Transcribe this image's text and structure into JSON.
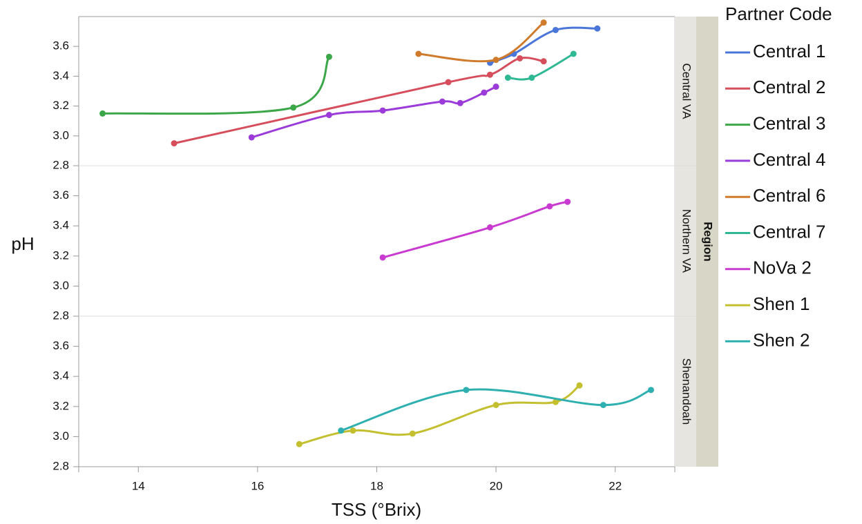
{
  "chart_data": {
    "type": "line",
    "x_label": "TSS (°Brix)",
    "y_label": "pH",
    "facet_label": "Region",
    "legend_title": "Partner Code",
    "xlim": [
      13,
      23
    ],
    "xticks": [
      14,
      16,
      18,
      20,
      22
    ],
    "ylim": [
      2.8,
      3.8
    ],
    "yticks": [
      2.8,
      {
        "value": 3,
        "label": "3.0"
      },
      3.2,
      3.4,
      3.6
    ],
    "panels": [
      {
        "name": "Central VA",
        "series": [
          {
            "name": "Central 1",
            "color": "#4a76d9",
            "x": [
              19.9,
              20.3,
              21.0,
              21.7
            ],
            "values": [
              3.49,
              3.55,
              3.71,
              3.72
            ]
          },
          {
            "name": "Central 2",
            "color": "#d64e5c",
            "x": [
              14.6,
              19.2,
              19.9,
              20.4,
              20.8
            ],
            "values": [
              2.95,
              3.36,
              3.41,
              3.52,
              3.5
            ]
          },
          {
            "name": "Central 3",
            "color": "#3ca748",
            "x": [
              13.4,
              16.6,
              17.2
            ],
            "values": [
              3.15,
              3.19,
              3.53
            ]
          },
          {
            "name": "Central 4",
            "color": "#9b3bd9",
            "x": [
              15.9,
              17.2,
              18.1,
              19.1,
              19.4,
              19.8,
              20.0
            ],
            "values": [
              2.99,
              3.14,
              3.17,
              3.23,
              3.22,
              3.29,
              3.33
            ]
          },
          {
            "name": "Central 6",
            "color": "#d07a2c",
            "x": [
              18.7,
              20.0,
              20.8
            ],
            "values": [
              3.55,
              3.51,
              3.76
            ]
          },
          {
            "name": "Central 7",
            "color": "#2eb894",
            "x": [
              20.2,
              20.6,
              21.3
            ],
            "values": [
              3.39,
              3.39,
              3.55
            ]
          }
        ]
      },
      {
        "name": "Northern VA",
        "series": [
          {
            "name": "NoVa 2",
            "color": "#c93ad0",
            "x": [
              18.1,
              19.9,
              20.9,
              21.2
            ],
            "values": [
              3.19,
              3.39,
              3.53,
              3.56
            ]
          }
        ]
      },
      {
        "name": "Shenandoah",
        "series": [
          {
            "name": "Shen 1",
            "color": "#c3bf2f",
            "x": [
              16.7,
              17.6,
              18.6,
              20.0,
              21.0,
              21.4
            ],
            "values": [
              2.95,
              3.04,
              3.02,
              3.21,
              3.23,
              3.34
            ]
          },
          {
            "name": "Shen 2",
            "color": "#2fb0b0",
            "x": [
              17.4,
              19.5,
              21.8,
              22.6
            ],
            "values": [
              3.04,
              3.31,
              3.21,
              3.31
            ]
          }
        ]
      }
    ]
  }
}
